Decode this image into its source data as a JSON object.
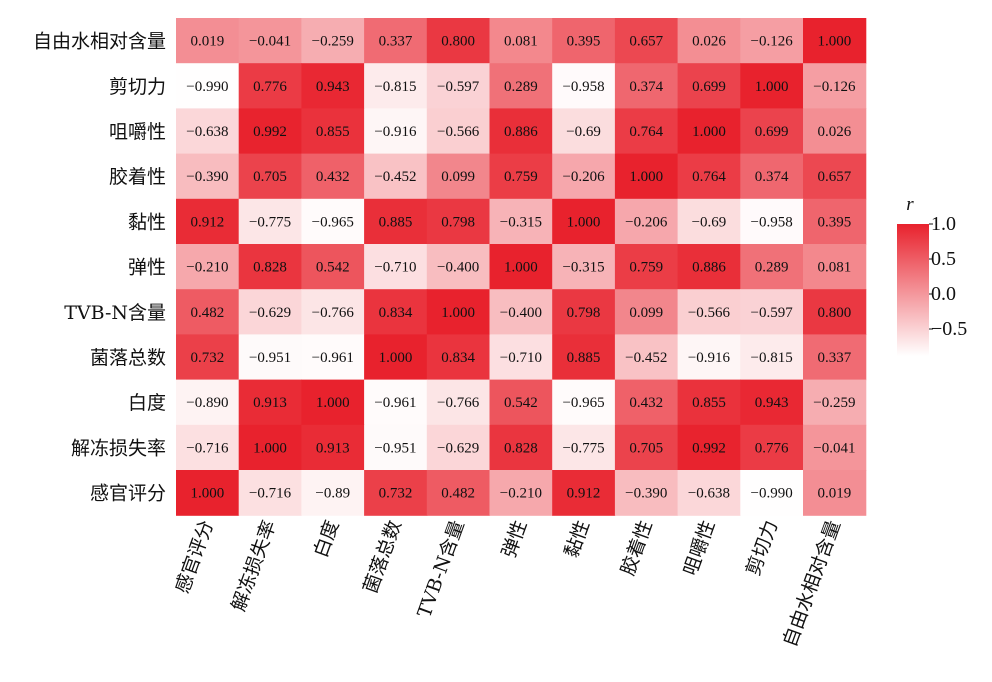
{
  "chart_data": {
    "type": "heatmap",
    "rows": [
      "自由水相对含量",
      "剪切力",
      "咀嚼性",
      "胶着性",
      "黏性",
      "弹性",
      "TVB-N含量",
      "菌落总数",
      "白度",
      "解冻损失率",
      "感官评分"
    ],
    "columns": [
      "感官评分",
      "解冻损失率",
      "白度",
      "菌落总数",
      "TVB-N含量",
      "弹性",
      "黏性",
      "胶着性",
      "咀嚼性",
      "剪切力",
      "自由水相对含量"
    ],
    "values": [
      [
        0.019,
        -0.041,
        -0.259,
        0.337,
        0.8,
        0.081,
        0.395,
        0.657,
        0.026,
        -0.126,
        1.0
      ],
      [
        -0.99,
        0.776,
        0.943,
        -0.815,
        -0.597,
        0.289,
        -0.958,
        0.374,
        0.699,
        1.0,
        -0.126
      ],
      [
        -0.638,
        0.992,
        0.855,
        -0.916,
        -0.566,
        0.886,
        -0.69,
        0.764,
        1.0,
        0.699,
        0.026
      ],
      [
        -0.39,
        0.705,
        0.432,
        -0.452,
        0.099,
        0.759,
        -0.206,
        1.0,
        0.764,
        0.374,
        0.657
      ],
      [
        0.912,
        -0.775,
        -0.965,
        0.885,
        0.798,
        -0.315,
        1.0,
        -0.206,
        -0.69,
        -0.958,
        0.395
      ],
      [
        -0.21,
        0.828,
        0.542,
        -0.71,
        -0.4,
        1.0,
        -0.315,
        0.759,
        0.886,
        0.289,
        0.081
      ],
      [
        0.482,
        -0.629,
        -0.766,
        0.834,
        1.0,
        -0.4,
        0.798,
        0.099,
        -0.566,
        -0.597,
        0.8
      ],
      [
        0.732,
        -0.951,
        -0.961,
        1.0,
        0.834,
        -0.71,
        0.885,
        -0.452,
        -0.916,
        -0.815,
        0.337
      ],
      [
        -0.89,
        0.913,
        1.0,
        -0.961,
        -0.766,
        0.542,
        -0.965,
        0.432,
        0.855,
        0.943,
        -0.259
      ],
      [
        -0.716,
        1.0,
        0.913,
        -0.951,
        -0.629,
        0.828,
        -0.775,
        0.705,
        0.992,
        0.776,
        -0.041
      ],
      [
        1.0,
        -0.716,
        -0.89,
        0.732,
        0.482,
        -0.21,
        0.912,
        -0.39,
        -0.638,
        -0.99,
        0.019
      ]
    ],
    "labels": [
      [
        "0.019",
        "−0.041",
        "−0.259",
        "0.337",
        "0.800",
        "0.081",
        "0.395",
        "0.657",
        "0.026",
        "−0.126",
        "1.000"
      ],
      [
        "−0.990",
        "0.776",
        "0.943",
        "−0.815",
        "−0.597",
        "0.289",
        "−0.958",
        "0.374",
        "0.699",
        "1.000",
        "−0.126"
      ],
      [
        "−0.638",
        "0.992",
        "0.855",
        "−0.916",
        "−0.566",
        "0.886",
        "−0.69",
        "0.764",
        "1.000",
        "0.699",
        "0.026"
      ],
      [
        "−0.390",
        "0.705",
        "0.432",
        "−0.452",
        "0.099",
        "0.759",
        "−0.206",
        "1.000",
        "0.764",
        "0.374",
        "0.657"
      ],
      [
        "0.912",
        "−0.775",
        "−0.965",
        "0.885",
        "0.798",
        "−0.315",
        "1.000",
        "−0.206",
        "−0.69",
        "−0.958",
        "0.395"
      ],
      [
        "−0.210",
        "0.828",
        "0.542",
        "−0.710",
        "−0.400",
        "1.000",
        "−0.315",
        "0.759",
        "0.886",
        "0.289",
        "0.081"
      ],
      [
        "0.482",
        "−0.629",
        "−0.766",
        "0.834",
        "1.000",
        "−0.400",
        "0.798",
        "0.099",
        "−0.566",
        "−0.597",
        "0.800"
      ],
      [
        "0.732",
        "−0.951",
        "−0.961",
        "1.000",
        "0.834",
        "−0.710",
        "0.885",
        "−0.452",
        "−0.916",
        "−0.815",
        "0.337"
      ],
      [
        "−0.890",
        "0.913",
        "1.000",
        "−0.961",
        "−0.766",
        "0.542",
        "−0.965",
        "0.432",
        "0.855",
        "0.943",
        "−0.259"
      ],
      [
        "−0.716",
        "1.000",
        "0.913",
        "−0.951",
        "−0.629",
        "0.828",
        "−0.775",
        "0.705",
        "0.992",
        "0.776",
        "−0.041"
      ],
      [
        "1.000",
        "−0.716",
        "−0.89",
        "0.732",
        "0.482",
        "−0.210",
        "0.912",
        "−0.390",
        "−0.638",
        "−0.990",
        "0.019"
      ]
    ],
    "colorbar": {
      "title": "r",
      "range": [
        -1.0,
        1.0
      ],
      "ticks": [
        1.0,
        0.5,
        0.0,
        -0.5
      ],
      "tick_labels": [
        "1.0",
        "0.5",
        "0.0",
        "−0.5"
      ],
      "color_low": "#ffffff",
      "color_high": "#e8222d"
    },
    "legend_position": "right"
  }
}
